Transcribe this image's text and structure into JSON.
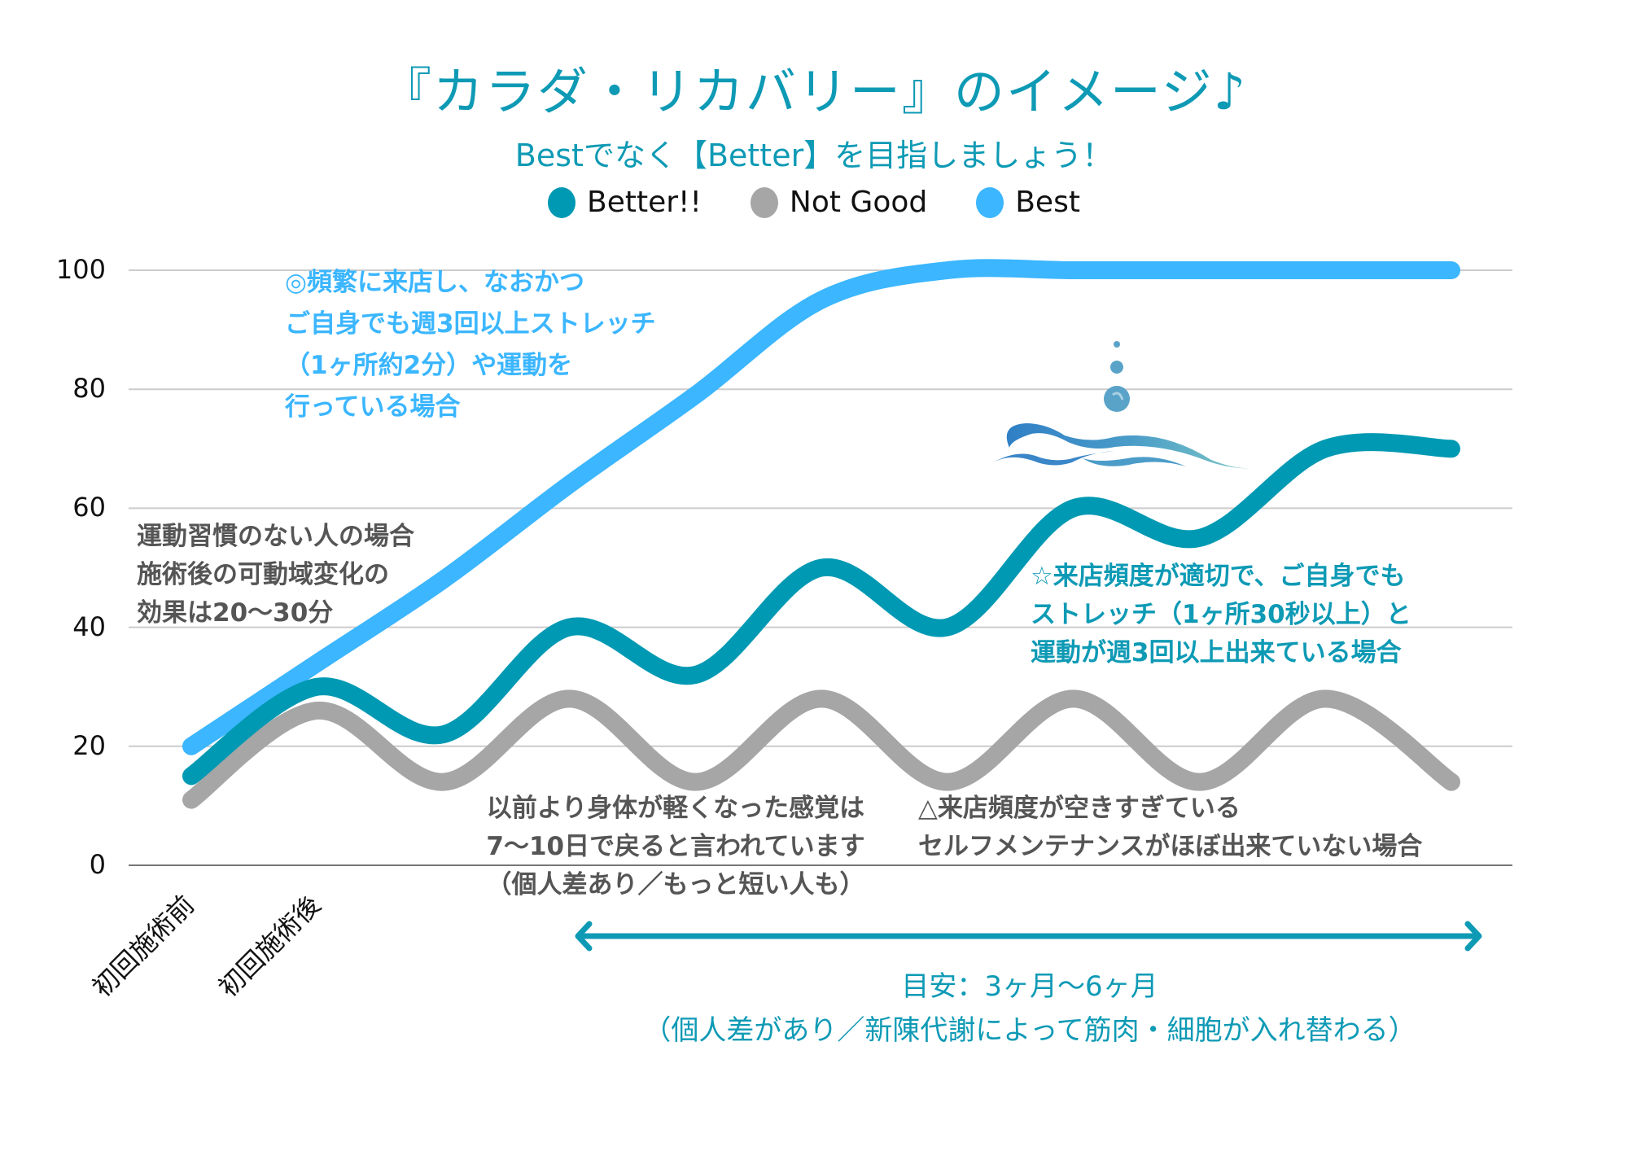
{
  "header": {
    "title": "『カラダ・リカバリー』のイメージ♪",
    "subtitle": "Bestでなく【Better】を目指しましょう！"
  },
  "colors": {
    "accent": "#0E9AB5",
    "better": "#0099B3",
    "not_good": "#A6A6A6",
    "best": "#3BB6FF",
    "gray_text": "#555555"
  },
  "chart_data": {
    "type": "line",
    "title": "『カラダ・リカバリー』のイメージ♪",
    "subtitle": "Bestでなく【Better】を目指しましょう！",
    "xlabel": "",
    "ylabel": "",
    "ylim": [
      0,
      100
    ],
    "yticks": [
      0,
      20,
      40,
      60,
      80,
      100
    ],
    "grid": true,
    "legend_position": "top-center",
    "smooth": true,
    "categories": [
      "初回施術前",
      "初回施術後",
      "",
      "",
      "",
      "",
      "",
      "",
      "",
      "",
      ""
    ],
    "series": [
      {
        "name": "Better!!",
        "color": "#0099B3",
        "values": [
          15,
          30,
          22,
          40,
          32,
          50,
          40,
          60,
          55,
          70,
          70
        ]
      },
      {
        "name": "Not Good",
        "color": "#A6A6A6",
        "values": [
          11,
          26,
          14,
          28,
          14,
          28,
          14,
          28,
          14,
          28,
          14
        ]
      },
      {
        "name": "Best",
        "color": "#3BB6FF",
        "values": [
          20,
          34,
          48,
          64,
          79,
          95,
          100,
          100,
          100,
          100,
          100
        ]
      }
    ],
    "annotations": {
      "best": [
        "◎頻繁に来店し、なおかつ",
        "ご自身でも週3回以上ストレッチ",
        "（1ヶ所約2分）や運動を",
        "行っている場合"
      ],
      "left": [
        "運動習慣のない人の場合",
        "施術後の可動域変化の",
        "効果は20〜30分"
      ],
      "better": [
        "☆来店頻度が適切で、ご自身でも",
        "ストレッチ（1ヶ所30秒以上）と",
        "運動が週3回以上出来ている場合"
      ],
      "middle": [
        "以前より身体が軽くなった感覚は",
        "7〜10日で戻ると言われています",
        "（個人差あり／もっと短い人も）"
      ],
      "not_good": [
        "△来店頻度が空きすぎている",
        "セルフメンテナンスがほぼ出来ていない場合"
      ]
    },
    "period": {
      "label": "目安：3ヶ月〜6ヶ月",
      "note": "（個人差があり／新陳代謝によって筋肉・細胞が入れ替わる）",
      "from_index": 3,
      "to_index": 10
    }
  }
}
